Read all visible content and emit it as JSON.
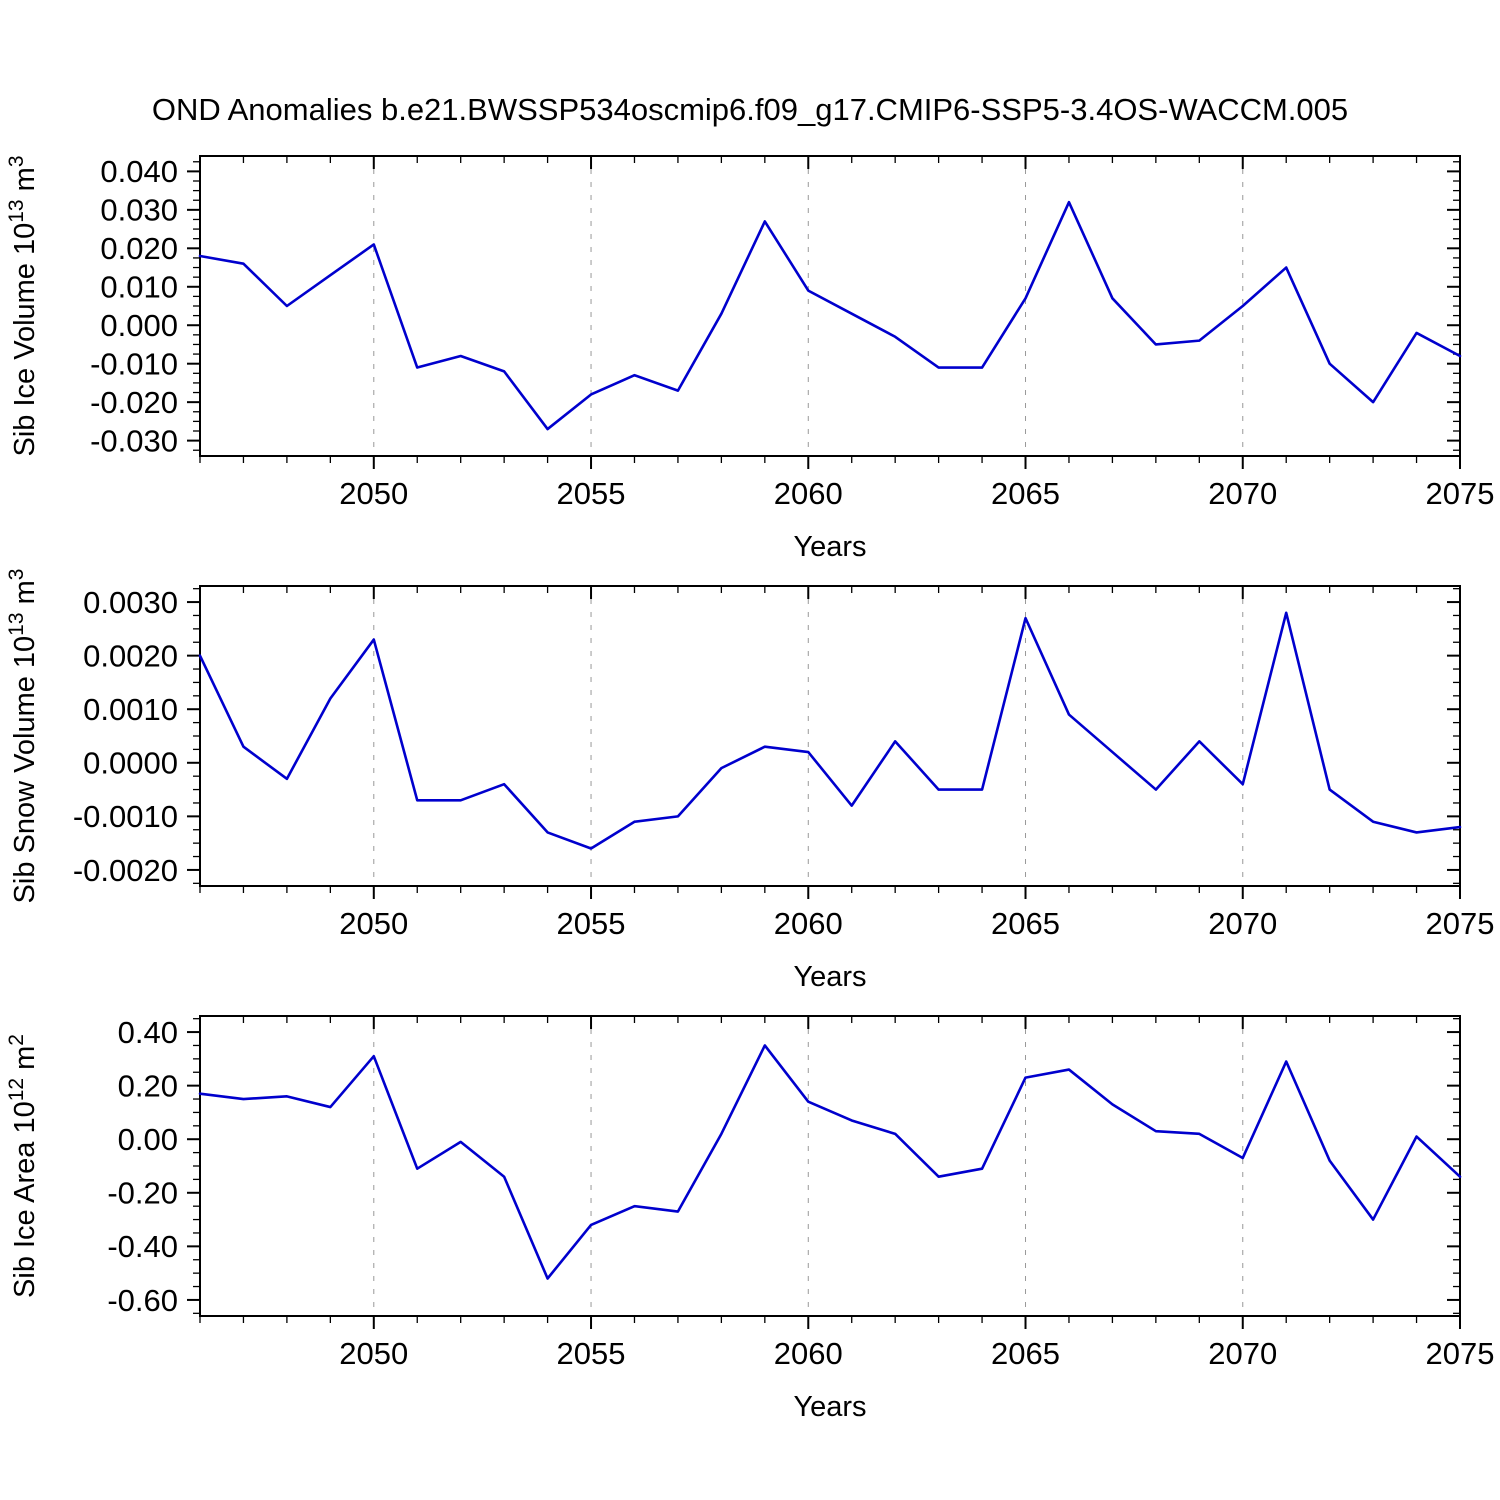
{
  "title": "OND Anomalies b.e21.BWSSP534oscmip6.f09_g17.CMIP6-SSP5-3.4OS-WACCM.005",
  "colors": {
    "line": "#0000cd",
    "grid": "#999999",
    "axis": "#000000",
    "text": "#000000",
    "background": "#ffffff"
  },
  "x_axis": {
    "label": "Years",
    "xlim": [
      2046,
      2075
    ],
    "years": [
      2046,
      2047,
      2048,
      2049,
      2050,
      2051,
      2052,
      2053,
      2054,
      2055,
      2056,
      2057,
      2058,
      2059,
      2060,
      2061,
      2062,
      2063,
      2064,
      2065,
      2066,
      2067,
      2068,
      2069,
      2070,
      2071,
      2072,
      2073,
      2074,
      2075
    ],
    "major_ticks": [
      {
        "v": 2050,
        "label": "2050"
      },
      {
        "v": 2055,
        "label": "2055"
      },
      {
        "v": 2060,
        "label": "2060"
      },
      {
        "v": 2065,
        "label": "2065"
      },
      {
        "v": 2070,
        "label": "2070"
      },
      {
        "v": 2075,
        "label": "2075"
      }
    ],
    "grid_lines": [
      2050,
      2055,
      2060,
      2065,
      2070
    ]
  },
  "chart_data": [
    {
      "type": "line",
      "name": "sib-ice-volume",
      "ylabel": "Sib Ice Volume 10^13 m^3",
      "ylabel_parts": [
        {
          "text": "Sib Ice Volume 10"
        },
        {
          "text": "13",
          "sup": true
        },
        {
          "text": " m"
        },
        {
          "text": "3",
          "sup": true
        }
      ],
      "ylim": [
        -0.034,
        0.044
      ],
      "yminor_step": 0.0025,
      "yticks": [
        {
          "v": 0.04,
          "label": "0.040"
        },
        {
          "v": 0.03,
          "label": "0.030"
        },
        {
          "v": 0.02,
          "label": "0.020"
        },
        {
          "v": 0.01,
          "label": "0.010"
        },
        {
          "v": 0.0,
          "label": "0.000"
        },
        {
          "v": -0.01,
          "label": "-0.010"
        },
        {
          "v": -0.02,
          "label": "-0.020"
        },
        {
          "v": -0.03,
          "label": "-0.030"
        }
      ],
      "values": [
        0.018,
        0.016,
        0.005,
        0.013,
        0.021,
        -0.011,
        -0.008,
        -0.012,
        -0.027,
        -0.018,
        -0.013,
        -0.017,
        0.003,
        0.027,
        0.009,
        0.003,
        -0.003,
        -0.011,
        -0.011,
        0.007,
        0.032,
        0.007,
        -0.005,
        -0.004,
        0.005,
        0.015,
        -0.01,
        -0.02,
        -0.002,
        -0.008
      ]
    },
    {
      "type": "line",
      "name": "sib-snow-volume",
      "ylabel": "Sib Snow Volume 10^13 m^3",
      "ylabel_parts": [
        {
          "text": "Sib Snow Volume 10"
        },
        {
          "text": "13",
          "sup": true
        },
        {
          "text": " m"
        },
        {
          "text": "3",
          "sup": true
        }
      ],
      "ylim": [
        -0.0023,
        0.0033
      ],
      "yminor_step": 0.00025,
      "yticks": [
        {
          "v": 0.003,
          "label": "0.0030"
        },
        {
          "v": 0.002,
          "label": "0.0020"
        },
        {
          "v": 0.001,
          "label": "0.0010"
        },
        {
          "v": 0.0,
          "label": "0.0000"
        },
        {
          "v": -0.001,
          "label": "-0.0010"
        },
        {
          "v": -0.002,
          "label": "-0.0020"
        }
      ],
      "values": [
        0.002,
        0.0003,
        -0.0003,
        0.0012,
        0.0023,
        -0.0007,
        -0.0007,
        -0.0004,
        -0.0013,
        -0.0016,
        -0.0011,
        -0.001,
        -0.0001,
        0.0003,
        0.0002,
        -0.0008,
        0.0004,
        -0.0005,
        -0.0005,
        0.0027,
        0.0009,
        0.0002,
        -0.0005,
        0.0004,
        -0.0004,
        0.0028,
        -0.0005,
        -0.0011,
        -0.0013,
        -0.0012
      ]
    },
    {
      "type": "line",
      "name": "sib-ice-area",
      "ylabel": "Sib Ice Area 10^12 m^2",
      "ylabel_parts": [
        {
          "text": "Sib Ice Area 10"
        },
        {
          "text": "12",
          "sup": true
        },
        {
          "text": " m"
        },
        {
          "text": "2",
          "sup": true
        }
      ],
      "ylim": [
        -0.66,
        0.46
      ],
      "yminor_step": 0.05,
      "yticks": [
        {
          "v": 0.4,
          "label": "0.40"
        },
        {
          "v": 0.2,
          "label": "0.20"
        },
        {
          "v": 0.0,
          "label": "0.00"
        },
        {
          "v": -0.2,
          "label": "-0.20"
        },
        {
          "v": -0.4,
          "label": "-0.40"
        },
        {
          "v": -0.6,
          "label": "-0.60"
        }
      ],
      "values": [
        0.17,
        0.15,
        0.16,
        0.12,
        0.31,
        -0.11,
        -0.01,
        -0.14,
        -0.52,
        -0.32,
        -0.25,
        -0.27,
        0.02,
        0.35,
        0.14,
        0.07,
        0.02,
        -0.14,
        -0.11,
        0.23,
        0.26,
        0.13,
        0.03,
        0.02,
        -0.07,
        0.29,
        -0.08,
        -0.3,
        0.01,
        -0.14
      ]
    }
  ]
}
